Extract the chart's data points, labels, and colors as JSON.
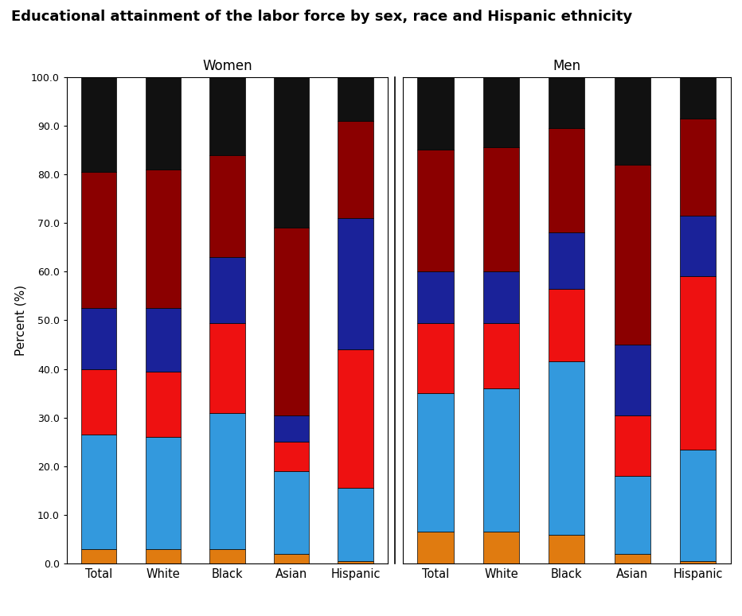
{
  "title": "Educational attainment of the labor force by sex, race and Hispanic ethnicity",
  "categories": [
    "Total",
    "White",
    "Black",
    "Asian",
    "Hispanic"
  ],
  "segment_colors": [
    "#E07B10",
    "#3399DD",
    "#EE1111",
    "#1A2299",
    "#8B0000",
    "#111111"
  ],
  "women_data": [
    [
      3.0,
      23.5,
      13.5,
      12.5,
      28.0,
      19.5
    ],
    [
      3.0,
      23.0,
      13.5,
      13.0,
      28.5,
      19.0
    ],
    [
      3.0,
      28.0,
      18.5,
      13.5,
      21.0,
      16.0
    ],
    [
      2.0,
      17.0,
      6.0,
      5.5,
      38.5,
      31.0
    ],
    [
      0.5,
      15.0,
      28.5,
      27.0,
      20.0,
      9.0
    ]
  ],
  "men_data": [
    [
      6.5,
      28.5,
      14.5,
      10.5,
      25.0,
      15.0
    ],
    [
      6.5,
      29.5,
      13.5,
      10.5,
      25.5,
      14.5
    ],
    [
      6.0,
      35.5,
      15.0,
      11.5,
      21.5,
      10.5
    ],
    [
      2.0,
      16.0,
      12.5,
      14.5,
      37.0,
      18.0
    ],
    [
      0.5,
      23.0,
      35.5,
      12.5,
      20.0,
      8.5
    ]
  ],
  "ylabel": "Percent (%)",
  "ylim": [
    0,
    100
  ],
  "yticks": [
    0.0,
    10.0,
    20.0,
    30.0,
    40.0,
    50.0,
    60.0,
    70.0,
    80.0,
    90.0,
    100.0
  ],
  "women_label": "Women",
  "men_label": "Men",
  "figsize": [
    9.32,
    7.74
  ],
  "dpi": 100
}
